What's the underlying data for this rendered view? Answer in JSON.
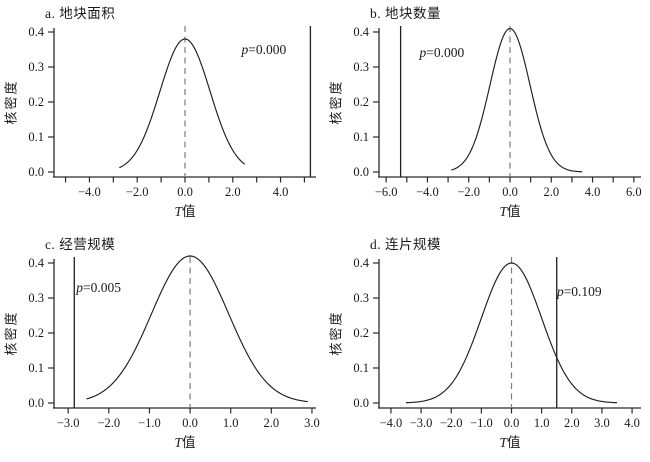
{
  "figure_title": "kernel-density-t-test-panels",
  "colors": {
    "axis": "#2b2b2b",
    "curve": "#1f1f1f",
    "t_line": "#1f1f1f",
    "zero_line_dashed": "#7d7d7d",
    "background": "#ffffff",
    "text": "#1a1a1a"
  },
  "chart_data": [
    {
      "id": "a",
      "type": "line",
      "title": "a. 地块面积",
      "ylabel": "核密度",
      "xlabel": {
        "italic": "T",
        "rest": "值"
      },
      "p_label": {
        "prefix": "p",
        "rest": "=0.000",
        "x": 3.3,
        "y": 0.35
      },
      "x_range": [
        -5.4,
        5.4
      ],
      "y_range": [
        0,
        0.42
      ],
      "x_major_ticks": {
        "values": [
          -4,
          -2,
          0,
          2,
          4
        ],
        "labels": [
          "−4.0",
          "−2.0",
          "0.0",
          "2.0",
          "4.0"
        ]
      },
      "x_minor_ticks": [
        -5,
        -3,
        -1,
        1,
        3,
        5
      ],
      "y_ticks": {
        "values": [
          0,
          0.1,
          0.2,
          0.3,
          0.4
        ],
        "labels": [
          "0.0",
          "0.1",
          "0.2",
          "0.3",
          "0.4"
        ]
      },
      "density": {
        "kind": "gaussian_kde",
        "peak": 0.38,
        "sigma": 1.05,
        "center": 0,
        "x_start": -2.75,
        "x_end": 2.5
      },
      "zero_line_x": 0,
      "t_line_x": 5.25,
      "grid": false,
      "legend": "none"
    },
    {
      "id": "b",
      "type": "line",
      "title": "b. 地块数量",
      "ylabel": "核密度",
      "xlabel": {
        "italic": "T",
        "rest": "值"
      },
      "p_label": {
        "prefix": "p",
        "rest": "=0.000",
        "x": -3.3,
        "y": 0.34
      },
      "x_range": [
        -6.25,
        6.25
      ],
      "y_range": [
        0,
        0.42
      ],
      "x_major_ticks": {
        "values": [
          -6,
          -4,
          -2,
          0,
          2,
          4,
          6
        ],
        "labels": [
          "−6.0",
          "−4.0",
          "−2.0",
          "0.0",
          "2.0",
          "4.0",
          "6.0"
        ]
      },
      "x_minor_ticks": [
        -5,
        -3,
        -1,
        1,
        3,
        5
      ],
      "y_ticks": {
        "values": [
          0,
          0.1,
          0.2,
          0.3,
          0.4
        ],
        "labels": [
          "0.0",
          "0.1",
          "0.2",
          "0.3",
          "0.4"
        ]
      },
      "density": {
        "kind": "gaussian_kde",
        "peak": 0.41,
        "sigma": 0.97,
        "center": 0,
        "x_start": -2.85,
        "x_end": 3.5
      },
      "zero_line_x": 0,
      "t_line_x": -5.3,
      "grid": false,
      "legend": "none"
    },
    {
      "id": "c",
      "type": "line",
      "title": "c. 经营规模",
      "ylabel": "核密度",
      "xlabel": {
        "italic": "T",
        "rest": "值"
      },
      "p_label": {
        "prefix": "p",
        "rest": "=0.005",
        "x": -2.25,
        "y": 0.33
      },
      "x_range": [
        -3.3,
        3.05
      ],
      "y_range": [
        0,
        0.43
      ],
      "x_major_ticks": {
        "values": [
          -3,
          -2,
          -1,
          0,
          1,
          2,
          3
        ],
        "labels": [
          "−3.0",
          "−2.0",
          "−1.0",
          "0.0",
          "1.0",
          "2.0",
          "3.0"
        ]
      },
      "x_minor_ticks": [],
      "y_ticks": {
        "values": [
          0,
          0.1,
          0.2,
          0.3,
          0.4
        ],
        "labels": [
          "0.0",
          "0.1",
          "0.2",
          "0.3",
          "0.4"
        ]
      },
      "density": {
        "kind": "gaussian_kde",
        "peak": 0.42,
        "sigma": 0.95,
        "center": 0,
        "x_start": -2.55,
        "x_end": 2.9
      },
      "zero_line_x": 0,
      "t_line_x": -2.85,
      "grid": false,
      "legend": "none"
    },
    {
      "id": "d",
      "type": "line",
      "title": "d. 连片规模",
      "ylabel": "核密度",
      "xlabel": {
        "italic": "T",
        "rest": "值"
      },
      "p_label": {
        "prefix": "p",
        "rest": "=0.109",
        "x": 2.25,
        "y": 0.317
      },
      "x_range": [
        -4.33,
        4.23
      ],
      "y_range": [
        0,
        0.42
      ],
      "x_major_ticks": {
        "values": [
          -4,
          -3,
          -2,
          -1,
          0,
          1,
          2,
          3,
          4
        ],
        "labels": [
          "−4.0",
          "−3.0",
          "−2.0",
          "−1.0",
          "0.0",
          "1.0",
          "2.0",
          "3.0",
          "4.0"
        ]
      },
      "x_minor_ticks": [],
      "y_ticks": {
        "values": [
          0,
          0.1,
          0.2,
          0.3,
          0.4
        ],
        "labels": [
          "0.0",
          "0.1",
          "0.2",
          "0.3",
          "0.4"
        ]
      },
      "density": {
        "kind": "gaussian_kde",
        "peak": 0.4,
        "sigma": 1.0,
        "center": 0,
        "x_start": -3.5,
        "x_end": 3.5
      },
      "zero_line_x": 0,
      "t_line_x": 1.5,
      "grid": false,
      "legend": "none"
    }
  ]
}
